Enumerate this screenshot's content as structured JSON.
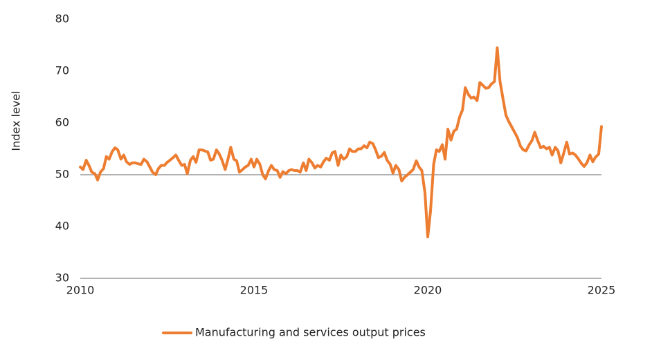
{
  "chart_data": {
    "type": "line",
    "y_label": "Index level",
    "xlim": [
      2010,
      2025
    ],
    "xticks": [
      2010,
      2015,
      2020,
      2025
    ],
    "ylim": [
      30,
      80
    ],
    "yticks": [
      30,
      40,
      50,
      60,
      70,
      80
    ],
    "reference_line": 50,
    "legend": "bottom",
    "x": [
      2010.0,
      2010.08,
      2010.17,
      2010.25,
      2010.33,
      2010.42,
      2010.5,
      2010.58,
      2010.67,
      2010.75,
      2010.83,
      2010.92,
      2011.0,
      2011.08,
      2011.17,
      2011.25,
      2011.33,
      2011.42,
      2011.5,
      2011.58,
      2011.67,
      2011.75,
      2011.83,
      2011.92,
      2012.0,
      2012.08,
      2012.17,
      2012.25,
      2012.33,
      2012.42,
      2012.5,
      2012.58,
      2012.67,
      2012.75,
      2012.83,
      2012.92,
      2013.0,
      2013.08,
      2013.17,
      2013.25,
      2013.33,
      2013.42,
      2013.5,
      2013.58,
      2013.67,
      2013.75,
      2013.83,
      2013.92,
      2014.0,
      2014.08,
      2014.17,
      2014.25,
      2014.33,
      2014.42,
      2014.5,
      2014.58,
      2014.67,
      2014.75,
      2014.83,
      2014.92,
      2015.0,
      2015.08,
      2015.17,
      2015.25,
      2015.33,
      2015.42,
      2015.5,
      2015.58,
      2015.67,
      2015.75,
      2015.83,
      2015.92,
      2016.0,
      2016.08,
      2016.17,
      2016.25,
      2016.33,
      2016.42,
      2016.5,
      2016.58,
      2016.67,
      2016.75,
      2016.83,
      2016.92,
      2017.0,
      2017.08,
      2017.17,
      2017.25,
      2017.33,
      2017.42,
      2017.5,
      2017.58,
      2017.67,
      2017.75,
      2017.83,
      2017.92,
      2018.0,
      2018.08,
      2018.17,
      2018.25,
      2018.33,
      2018.42,
      2018.5,
      2018.58,
      2018.67,
      2018.75,
      2018.83,
      2018.92,
      2019.0,
      2019.08,
      2019.17,
      2019.25,
      2019.33,
      2019.42,
      2019.5,
      2019.58,
      2019.67,
      2019.75,
      2019.83,
      2019.92,
      2020.0,
      2020.08,
      2020.17,
      2020.25,
      2020.33,
      2020.42,
      2020.5,
      2020.58,
      2020.67,
      2020.75,
      2020.83,
      2020.92,
      2021.0,
      2021.08,
      2021.17,
      2021.25,
      2021.33,
      2021.42,
      2021.5,
      2021.58,
      2021.67,
      2021.75,
      2021.83,
      2021.92,
      2022.0,
      2022.08,
      2022.17,
      2022.25,
      2022.33,
      2022.42,
      2022.5,
      2022.58,
      2022.67,
      2022.75,
      2022.83,
      2022.92,
      2023.0,
      2023.08,
      2023.17,
      2023.25,
      2023.33,
      2023.42,
      2023.5,
      2023.58,
      2023.67,
      2023.75,
      2023.83,
      2023.92,
      2024.0,
      2024.08,
      2024.17,
      2024.25,
      2024.33,
      2024.42,
      2024.5,
      2024.58,
      2024.67,
      2024.75,
      2024.83,
      2024.92,
      2025.0
    ],
    "series": [
      {
        "name": "Manufacturing and services output prices",
        "color": "#ed7d31",
        "values": [
          51.5,
          51,
          52.8,
          51.8,
          50.5,
          50.2,
          49,
          50.5,
          51.2,
          53.5,
          53,
          54.5,
          55.2,
          54.8,
          53,
          53.8,
          52.5,
          52,
          52.3,
          52.3,
          52.1,
          52,
          53,
          52.5,
          51.5,
          50.5,
          50,
          51.2,
          51.8,
          51.8,
          52.4,
          52.8,
          53.3,
          53.8,
          52.8,
          51.8,
          52,
          50.2,
          52.8,
          53.5,
          52.4,
          54.8,
          54.8,
          54.6,
          54.4,
          52.8,
          53,
          54.8,
          54,
          52.8,
          51,
          53,
          55.3,
          53,
          52.7,
          50.5,
          51,
          51.5,
          51.8,
          53,
          51.5,
          53,
          52,
          50,
          49.2,
          50.8,
          51.8,
          51,
          50.8,
          49.5,
          50.6,
          50.2,
          50.8,
          51,
          50.8,
          50.8,
          50.5,
          52.3,
          50.8,
          53,
          52.3,
          51.3,
          51.8,
          51.5,
          52.5,
          53.2,
          52.8,
          54.2,
          54.5,
          51.8,
          53.8,
          53,
          53.5,
          55,
          54.5,
          54.5,
          55,
          55,
          55.6,
          55.2,
          56.3,
          56,
          54.8,
          53.3,
          53.6,
          54.3,
          52.8,
          52,
          50.3,
          51.8,
          51,
          48.8,
          49.5,
          50,
          50.5,
          51,
          52.7,
          51.5,
          50.8,
          46.5,
          38,
          43,
          52,
          54.8,
          54.5,
          55.8,
          53,
          58.8,
          56.7,
          58.4,
          58.8,
          61.2,
          62.5,
          66.8,
          65.5,
          64.8,
          65,
          64.3,
          67.8,
          67.3,
          66.7,
          66.8,
          67.5,
          68,
          74.5,
          68,
          64.5,
          61.5,
          60.3,
          59.2,
          58.2,
          57.2,
          55.5,
          54.8,
          54.6,
          55.8,
          56.6,
          58.2,
          56.5,
          55.2,
          55.5,
          55,
          55.3,
          53.8,
          55.3,
          54.6,
          52.3,
          54.3,
          56.3,
          54,
          54.2,
          53.8,
          53.1,
          52.2,
          51.6,
          52.3,
          53.8,
          52.5,
          53.4,
          54,
          59.3
        ]
      }
    ]
  }
}
